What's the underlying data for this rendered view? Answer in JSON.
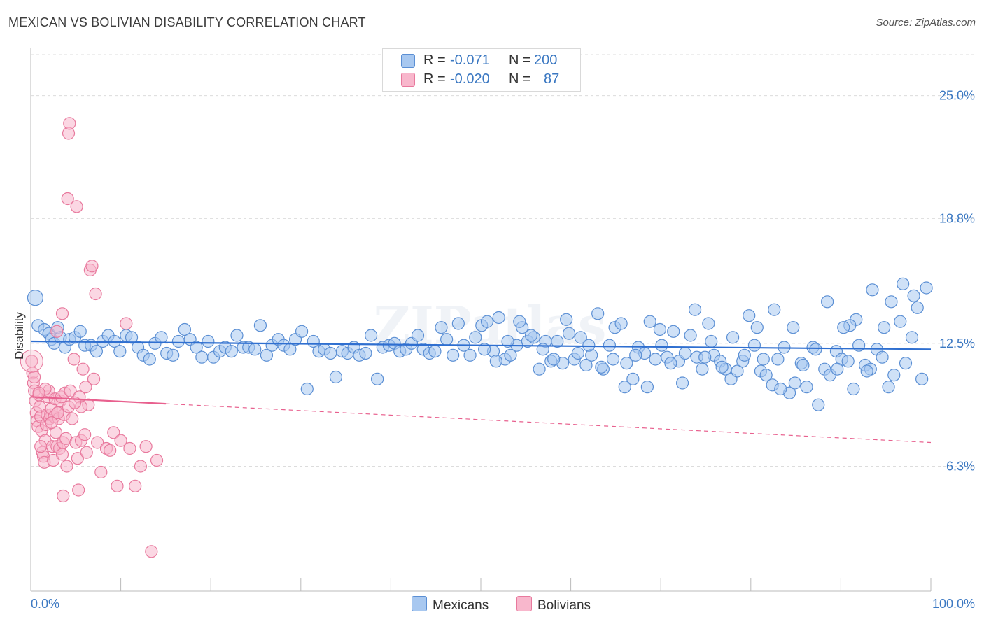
{
  "title": "MEXICAN VS BOLIVIAN DISABILITY CORRELATION CHART",
  "source": "Source: ZipAtlas.com",
  "watermark": "ZIPatlas",
  "colors": {
    "mexicans_fill": "#a8c8f0",
    "mexicans_stroke": "#5b8fd4",
    "mexicans_line": "#2f6fd0",
    "bolivians_fill": "#f8b7cc",
    "bolivians_stroke": "#e8799d",
    "bolivians_line": "#e8608e",
    "axis_label": "#3b78c2",
    "grid": "#dcdcdc"
  },
  "legend": {
    "rows": [
      {
        "r_label": "R =",
        "r_value": "-0.071",
        "n_label": "N =",
        "n_value": "200"
      },
      {
        "r_label": "R =",
        "r_value": "-0.020",
        "n_label": "N =",
        "n_value": "87"
      }
    ]
  },
  "chart_data": {
    "type": "scatter",
    "title": "MEXICAN VS BOLIVIAN DISABILITY CORRELATION CHART",
    "xlabel": "",
    "ylabel": "Disability",
    "xlim": [
      0,
      100
    ],
    "ylim": [
      0,
      27.0
    ],
    "x_tick_labels": [
      "0.0%",
      "100.0%"
    ],
    "y_ticks": [
      6.3,
      12.5,
      18.8,
      25.0
    ],
    "y_tick_labels": [
      "6.3%",
      "12.5%",
      "18.8%",
      "25.0%"
    ],
    "grid": true,
    "legend_position": "bottom-center",
    "series": [
      {
        "name": "Mexicans",
        "r": -0.071,
        "n": 200,
        "trend": {
          "x": [
            0,
            100
          ],
          "y": [
            12.6,
            12.2
          ],
          "dashed_from": null
        },
        "points": [
          [
            0.5,
            14.8
          ],
          [
            0.8,
            13.4
          ],
          [
            1.5,
            13.2
          ],
          [
            2.0,
            13.0
          ],
          [
            2.3,
            12.7
          ],
          [
            2.6,
            12.5
          ],
          [
            3.0,
            13.3
          ],
          [
            3.3,
            12.8
          ],
          [
            3.8,
            12.3
          ],
          [
            4.3,
            12.7
          ],
          [
            4.9,
            12.8
          ],
          [
            5.5,
            13.1
          ],
          [
            6.0,
            12.4
          ],
          [
            6.7,
            12.4
          ],
          [
            7.3,
            12.1
          ],
          [
            8.0,
            12.6
          ],
          [
            8.6,
            12.9
          ],
          [
            9.3,
            12.6
          ],
          [
            9.9,
            12.1
          ],
          [
            10.6,
            12.9
          ],
          [
            11.2,
            12.8
          ],
          [
            11.9,
            12.3
          ],
          [
            12.5,
            11.9
          ],
          [
            13.2,
            11.7
          ],
          [
            13.8,
            12.5
          ],
          [
            14.5,
            12.8
          ],
          [
            15.1,
            12.0
          ],
          [
            15.8,
            11.9
          ],
          [
            16.4,
            12.6
          ],
          [
            17.1,
            13.2
          ],
          [
            17.7,
            12.7
          ],
          [
            18.4,
            12.3
          ],
          [
            19.0,
            11.8
          ],
          [
            19.7,
            12.6
          ],
          [
            20.3,
            11.8
          ],
          [
            21.0,
            12.1
          ],
          [
            21.6,
            12.3
          ],
          [
            22.3,
            12.1
          ],
          [
            22.9,
            12.9
          ],
          [
            23.6,
            12.3
          ],
          [
            24.2,
            12.3
          ],
          [
            24.9,
            12.2
          ],
          [
            25.5,
            13.4
          ],
          [
            26.2,
            11.9
          ],
          [
            26.8,
            12.4
          ],
          [
            27.5,
            12.7
          ],
          [
            28.1,
            12.4
          ],
          [
            28.8,
            12.2
          ],
          [
            29.4,
            12.7
          ],
          [
            30.1,
            13.1
          ],
          [
            30.7,
            10.2
          ],
          [
            31.4,
            12.6
          ],
          [
            32.0,
            12.1
          ],
          [
            32.6,
            12.2
          ],
          [
            33.3,
            12.0
          ],
          [
            33.9,
            10.8
          ],
          [
            34.6,
            12.1
          ],
          [
            35.2,
            12.0
          ],
          [
            35.9,
            12.3
          ],
          [
            36.5,
            11.9
          ],
          [
            37.2,
            12.0
          ],
          [
            37.8,
            12.9
          ],
          [
            38.5,
            10.7
          ],
          [
            39.1,
            12.3
          ],
          [
            39.8,
            12.4
          ],
          [
            40.4,
            12.5
          ],
          [
            41.0,
            12.1
          ],
          [
            41.7,
            12.2
          ],
          [
            42.3,
            12.5
          ],
          [
            43.0,
            12.9
          ],
          [
            43.6,
            12.2
          ],
          [
            44.3,
            12.0
          ],
          [
            44.9,
            12.1
          ],
          [
            45.6,
            13.3
          ],
          [
            46.2,
            12.7
          ],
          [
            46.9,
            11.9
          ],
          [
            47.5,
            13.5
          ],
          [
            48.1,
            12.4
          ],
          [
            48.8,
            11.9
          ],
          [
            49.4,
            12.8
          ],
          [
            50.1,
            13.4
          ],
          [
            50.7,
            13.6
          ],
          [
            51.4,
            12.1
          ],
          [
            52.0,
            13.8
          ],
          [
            52.7,
            11.7
          ],
          [
            53.3,
            11.9
          ],
          [
            54.0,
            12.4
          ],
          [
            54.6,
            13.3
          ],
          [
            55.2,
            12.6
          ],
          [
            55.9,
            12.8
          ],
          [
            56.5,
            11.2
          ],
          [
            57.2,
            12.6
          ],
          [
            57.8,
            11.6
          ],
          [
            58.5,
            12.6
          ],
          [
            59.1,
            11.5
          ],
          [
            59.8,
            13.0
          ],
          [
            60.4,
            11.7
          ],
          [
            61.1,
            12.8
          ],
          [
            61.7,
            11.4
          ],
          [
            62.3,
            11.9
          ],
          [
            63.0,
            14.0
          ],
          [
            63.6,
            11.2
          ],
          [
            64.3,
            12.4
          ],
          [
            64.9,
            13.3
          ],
          [
            65.6,
            13.5
          ],
          [
            66.2,
            11.5
          ],
          [
            66.9,
            10.7
          ],
          [
            67.5,
            12.3
          ],
          [
            68.2,
            12.0
          ],
          [
            68.8,
            13.6
          ],
          [
            69.4,
            11.7
          ],
          [
            70.1,
            12.4
          ],
          [
            70.7,
            11.8
          ],
          [
            71.4,
            13.1
          ],
          [
            72.0,
            11.6
          ],
          [
            72.7,
            12.0
          ],
          [
            73.3,
            12.9
          ],
          [
            74.0,
            11.8
          ],
          [
            74.6,
            11.2
          ],
          [
            75.3,
            13.5
          ],
          [
            75.9,
            11.9
          ],
          [
            76.6,
            11.6
          ],
          [
            77.2,
            11.2
          ],
          [
            77.8,
            10.7
          ],
          [
            78.5,
            11.1
          ],
          [
            79.1,
            11.6
          ],
          [
            79.8,
            13.9
          ],
          [
            80.4,
            12.4
          ],
          [
            81.1,
            11.1
          ],
          [
            81.7,
            10.9
          ],
          [
            82.4,
            10.4
          ],
          [
            83.0,
            11.7
          ],
          [
            83.7,
            12.3
          ],
          [
            84.3,
            10.0
          ],
          [
            84.9,
            10.5
          ],
          [
            85.6,
            11.5
          ],
          [
            86.2,
            10.3
          ],
          [
            86.9,
            12.3
          ],
          [
            87.5,
            9.4
          ],
          [
            88.2,
            11.2
          ],
          [
            88.8,
            10.9
          ],
          [
            89.5,
            12.1
          ],
          [
            90.1,
            11.7
          ],
          [
            90.8,
            11.6
          ],
          [
            91.4,
            10.2
          ],
          [
            92.0,
            12.4
          ],
          [
            92.7,
            11.4
          ],
          [
            93.3,
            11.2
          ],
          [
            94.0,
            12.2
          ],
          [
            94.6,
            11.8
          ],
          [
            95.3,
            10.3
          ],
          [
            95.9,
            10.9
          ],
          [
            96.6,
            13.6
          ],
          [
            97.2,
            11.5
          ],
          [
            97.9,
            12.8
          ],
          [
            98.5,
            14.3
          ],
          [
            99.0,
            10.7
          ],
          [
            99.5,
            15.3
          ],
          [
            98.1,
            14.9
          ],
          [
            96.9,
            15.5
          ],
          [
            95.6,
            14.6
          ],
          [
            94.8,
            13.3
          ],
          [
            93.5,
            15.2
          ],
          [
            92.9,
            11.1
          ],
          [
            91.7,
            13.7
          ],
          [
            91.0,
            13.4
          ],
          [
            90.3,
            13.3
          ],
          [
            89.6,
            11.2
          ],
          [
            88.5,
            14.6
          ],
          [
            87.2,
            12.2
          ],
          [
            85.8,
            11.4
          ],
          [
            84.7,
            13.3
          ],
          [
            83.3,
            10.2
          ],
          [
            82.6,
            14.2
          ],
          [
            81.4,
            11.7
          ],
          [
            80.7,
            13.3
          ],
          [
            79.3,
            11.9
          ],
          [
            78.0,
            12.8
          ],
          [
            76.8,
            11.3
          ],
          [
            75.6,
            12.6
          ],
          [
            74.9,
            11.8
          ],
          [
            73.8,
            14.2
          ],
          [
            72.4,
            10.5
          ],
          [
            71.1,
            11.5
          ],
          [
            69.9,
            13.2
          ],
          [
            68.5,
            10.3
          ],
          [
            67.2,
            11.9
          ],
          [
            66.0,
            10.3
          ],
          [
            64.7,
            11.7
          ],
          [
            63.4,
            11.3
          ],
          [
            62.0,
            12.4
          ],
          [
            60.8,
            12.0
          ],
          [
            59.5,
            13.7
          ],
          [
            58.1,
            11.7
          ],
          [
            56.9,
            12.2
          ],
          [
            55.6,
            12.9
          ],
          [
            54.3,
            13.6
          ],
          [
            53.0,
            12.6
          ],
          [
            51.7,
            11.6
          ],
          [
            50.4,
            12.2
          ]
        ]
      },
      {
        "name": "Bolivians",
        "r": -0.02,
        "n": 87,
        "trend": {
          "x": [
            0,
            100
          ],
          "y": [
            9.8,
            7.5
          ],
          "dashed_from": 15
        },
        "points": [
          [
            0.1,
            11.6
          ],
          [
            0.2,
            11.0
          ],
          [
            0.3,
            10.5
          ],
          [
            0.4,
            10.1
          ],
          [
            0.5,
            9.6
          ],
          [
            0.6,
            9.0
          ],
          [
            0.7,
            8.6
          ],
          [
            0.8,
            8.3
          ],
          [
            0.9,
            9.9
          ],
          [
            1.0,
            9.3
          ],
          [
            1.1,
            8.8
          ],
          [
            1.2,
            8.1
          ],
          [
            1.3,
            7.0
          ],
          [
            1.4,
            6.8
          ],
          [
            1.5,
            6.5
          ],
          [
            1.6,
            7.6
          ],
          [
            1.7,
            8.4
          ],
          [
            1.8,
            8.9
          ],
          [
            1.9,
            9.8
          ],
          [
            2.0,
            10.1
          ],
          [
            2.1,
            8.7
          ],
          [
            2.2,
            8.9
          ],
          [
            2.3,
            9.2
          ],
          [
            2.4,
            7.3
          ],
          [
            2.5,
            6.6
          ],
          [
            2.6,
            8.8
          ],
          [
            2.7,
            9.7
          ],
          [
            2.8,
            8.0
          ],
          [
            2.9,
            7.3
          ],
          [
            3.0,
            9.0
          ],
          [
            3.1,
            8.7
          ],
          [
            3.2,
            7.2
          ],
          [
            3.3,
            9.6
          ],
          [
            3.4,
            9.8
          ],
          [
            3.5,
            6.9
          ],
          [
            3.6,
            7.5
          ],
          [
            3.7,
            8.9
          ],
          [
            3.8,
            10.0
          ],
          [
            3.9,
            7.7
          ],
          [
            4.0,
            6.3
          ],
          [
            4.2,
            9.3
          ],
          [
            4.4,
            10.1
          ],
          [
            4.6,
            8.7
          ],
          [
            4.8,
            11.7
          ],
          [
            5.0,
            7.5
          ],
          [
            5.2,
            6.7
          ],
          [
            5.4,
            9.8
          ],
          [
            5.6,
            7.6
          ],
          [
            5.8,
            11.2
          ],
          [
            6.0,
            7.9
          ],
          [
            6.2,
            7.0
          ],
          [
            6.4,
            9.4
          ],
          [
            6.6,
            16.2
          ],
          [
            6.8,
            16.4
          ],
          [
            7.0,
            10.7
          ],
          [
            7.2,
            15.0
          ],
          [
            4.2,
            23.1
          ],
          [
            4.3,
            23.6
          ],
          [
            4.1,
            19.8
          ],
          [
            5.1,
            19.4
          ],
          [
            3.5,
            14.0
          ],
          [
            2.9,
            13.1
          ],
          [
            7.4,
            7.5
          ],
          [
            7.8,
            6.0
          ],
          [
            8.4,
            7.2
          ],
          [
            8.8,
            7.1
          ],
          [
            9.2,
            8.0
          ],
          [
            9.6,
            5.3
          ],
          [
            10.0,
            7.6
          ],
          [
            10.6,
            13.5
          ],
          [
            11.0,
            7.2
          ],
          [
            11.6,
            5.3
          ],
          [
            12.2,
            6.3
          ],
          [
            12.8,
            7.3
          ],
          [
            13.4,
            2.0
          ],
          [
            14.0,
            6.6
          ],
          [
            3.6,
            4.8
          ],
          [
            5.3,
            5.1
          ],
          [
            5.6,
            9.3
          ],
          [
            6.1,
            10.3
          ],
          [
            4.9,
            9.5
          ],
          [
            3.0,
            9.0
          ],
          [
            2.3,
            8.5
          ],
          [
            1.6,
            10.2
          ],
          [
            0.9,
            10.0
          ],
          [
            0.4,
            10.8
          ],
          [
            1.1,
            7.3
          ]
        ]
      }
    ]
  },
  "bottom_legend": {
    "items": [
      {
        "label": "Mexicans"
      },
      {
        "label": "Bolivians"
      }
    ]
  }
}
